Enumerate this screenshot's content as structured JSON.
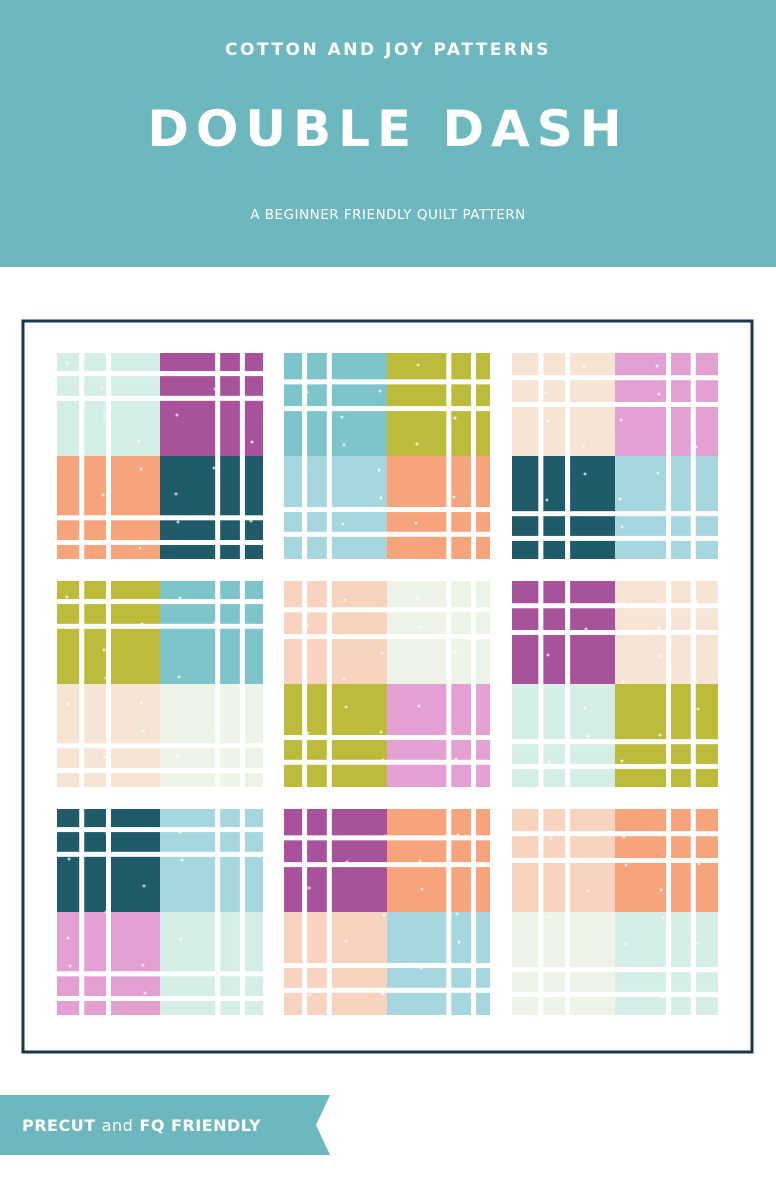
{
  "header": {
    "publisher": "COTTON AND JOY PATTERNS",
    "title": "DOUBLE DASH",
    "subtitle": "A BEGINNER FRIENDLY QUILT PATTERN"
  },
  "banner": {
    "text_bold": "PRECUT",
    "text_and": "and",
    "text_rest": "FQ FRIENDLY"
  }
}
